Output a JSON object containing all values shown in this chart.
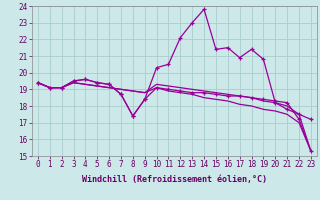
{
  "xlabel": "Windchill (Refroidissement éolien,°C)",
  "x": [
    0,
    1,
    2,
    3,
    4,
    5,
    6,
    7,
    8,
    9,
    10,
    11,
    12,
    13,
    14,
    15,
    16,
    17,
    18,
    19,
    20,
    21,
    22,
    23
  ],
  "line1": [
    19.4,
    19.1,
    19.1,
    19.5,
    19.6,
    19.4,
    19.3,
    18.7,
    17.4,
    18.4,
    20.3,
    20.5,
    22.1,
    23.0,
    23.8,
    21.4,
    21.5,
    20.9,
    21.4,
    20.8,
    18.2,
    17.8,
    17.5,
    17.2
  ],
  "line2": [
    19.4,
    19.1,
    19.1,
    19.5,
    19.6,
    19.4,
    19.3,
    18.7,
    17.4,
    18.4,
    19.1,
    19.0,
    18.9,
    18.8,
    18.8,
    18.7,
    18.6,
    18.6,
    18.5,
    18.4,
    18.3,
    18.2,
    17.2,
    15.3
  ],
  "line3": [
    19.4,
    19.1,
    19.1,
    19.4,
    19.3,
    19.2,
    19.1,
    19.0,
    18.9,
    18.8,
    19.1,
    18.9,
    18.8,
    18.7,
    18.5,
    18.4,
    18.3,
    18.1,
    18.0,
    17.8,
    17.7,
    17.5,
    17.0,
    15.3
  ],
  "line4": [
    19.4,
    19.1,
    19.1,
    19.4,
    19.3,
    19.2,
    19.1,
    19.0,
    18.9,
    18.8,
    19.3,
    19.2,
    19.1,
    19.0,
    18.9,
    18.8,
    18.7,
    18.6,
    18.5,
    18.3,
    18.2,
    18.0,
    17.5,
    15.3
  ],
  "color": "#990099",
  "bg_color": "#cce8e8",
  "grid_color": "#aacccc",
  "ylim": [
    15,
    24
  ],
  "xlim_min": -0.5,
  "xlim_max": 23.5,
  "yticks": [
    15,
    16,
    17,
    18,
    19,
    20,
    21,
    22,
    23,
    24
  ],
  "xticks": [
    0,
    1,
    2,
    3,
    4,
    5,
    6,
    7,
    8,
    9,
    10,
    11,
    12,
    13,
    14,
    15,
    16,
    17,
    18,
    19,
    20,
    21,
    22,
    23
  ],
  "tick_fontsize": 5.5,
  "xlabel_fontsize": 6,
  "marker_size": 3.5
}
